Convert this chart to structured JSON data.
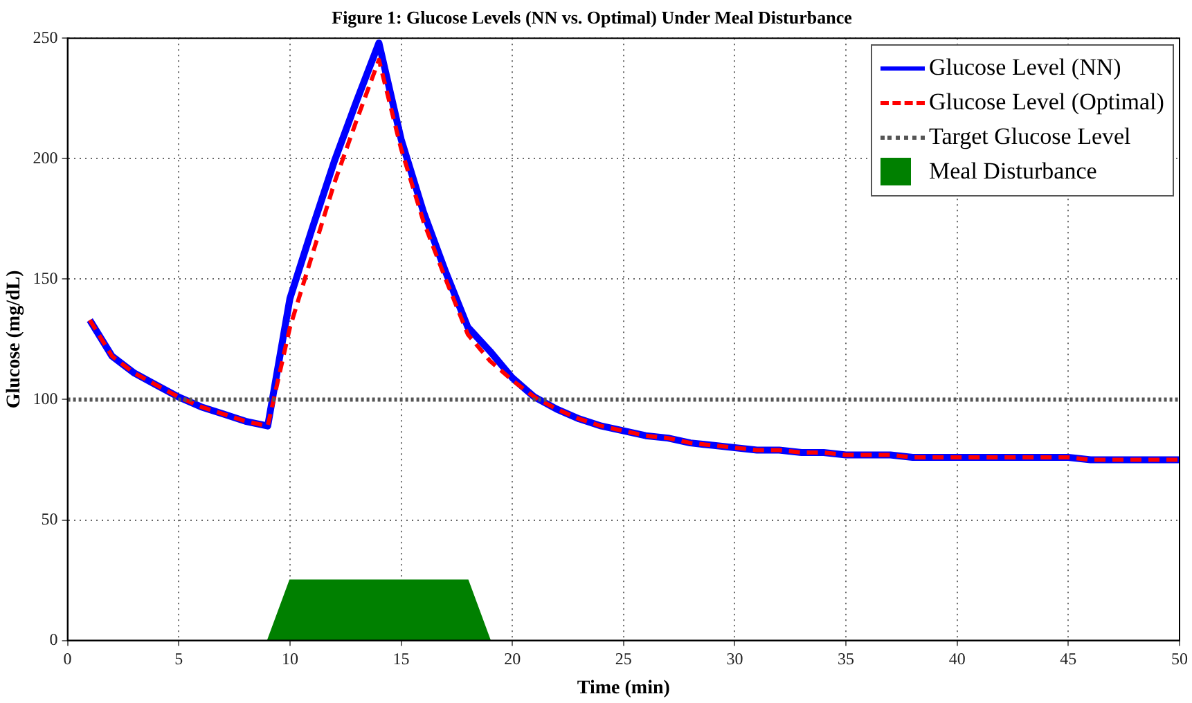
{
  "chart_data": {
    "type": "line",
    "title": "Figure 1: Glucose Levels (NN vs. Optimal) Under Meal Disturbance",
    "xlabel": "Time (min)",
    "ylabel": "Glucose (mg/dL)",
    "x": [
      1,
      2,
      3,
      4,
      5,
      6,
      7,
      8,
      9,
      10,
      11,
      12,
      13,
      14,
      15,
      16,
      17,
      18,
      19,
      20,
      21,
      22,
      23,
      24,
      25,
      26,
      27,
      28,
      29,
      30,
      31,
      32,
      33,
      34,
      35,
      36,
      37,
      38,
      39,
      40,
      41,
      42,
      43,
      44,
      45,
      46,
      47,
      48,
      49,
      50
    ],
    "series": [
      {
        "name": "Glucose Level (NN)",
        "color": "#0000ff",
        "line_style": "solid",
        "values": [
          133,
          118,
          111,
          106,
          101,
          97,
          94,
          91,
          89,
          142,
          171,
          199,
          224,
          248,
          208,
          178,
          153,
          130,
          120,
          109,
          101,
          96,
          92,
          89,
          87,
          85,
          84,
          82,
          81,
          80,
          79,
          79,
          78,
          78,
          77,
          77,
          77,
          76,
          76,
          76,
          76,
          76,
          76,
          76,
          76,
          75,
          75,
          75,
          75,
          75
        ]
      },
      {
        "name": "Glucose Level (Optimal)",
        "color": "#ff0000",
        "line_style": "dashed",
        "values": [
          133,
          118,
          111,
          106,
          101,
          97,
          94,
          91,
          89,
          130,
          160,
          190,
          216,
          241,
          204,
          174,
          150,
          127,
          116,
          108,
          101,
          96,
          92,
          89,
          87,
          85,
          84,
          82,
          81,
          80,
          79,
          79,
          78,
          78,
          77,
          77,
          77,
          76,
          76,
          76,
          76,
          76,
          76,
          76,
          76,
          75,
          75,
          75,
          75,
          75
        ]
      },
      {
        "name": "Meal Disturbance",
        "type": "area",
        "color": "#008000",
        "x": [
          9,
          10,
          18,
          19
        ],
        "values": [
          0,
          25,
          25,
          0
        ]
      }
    ],
    "ref_lines": [
      {
        "axis": "y",
        "value": 100,
        "label": "Target Glucose Level",
        "color": "#555555",
        "line_style": "dotted"
      }
    ],
    "xlim": [
      0,
      50
    ],
    "xticks": [
      0,
      5,
      10,
      15,
      20,
      25,
      30,
      35,
      40,
      45,
      50
    ],
    "ylim": [
      0,
      250
    ],
    "yticks": [
      0,
      50,
      100,
      150,
      200,
      250
    ],
    "grid": true,
    "legend": "top right"
  }
}
